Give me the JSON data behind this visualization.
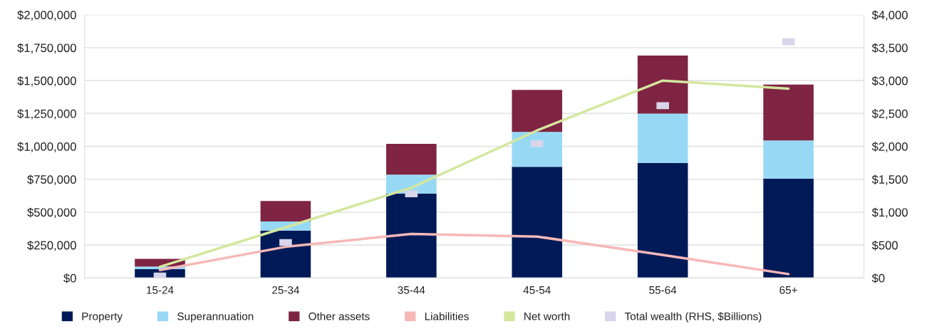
{
  "chart_data": {
    "type": "bar",
    "stacked": true,
    "categories": [
      "15-24",
      "25-34",
      "35-44",
      "45-54",
      "55-64",
      "65+"
    ],
    "series": [
      {
        "name": "Property",
        "color": "#001a57",
        "values": [
          67000,
          360000,
          640000,
          845000,
          875000,
          755000
        ]
      },
      {
        "name": "Superannuation",
        "color": "#97d9f5",
        "values": [
          21000,
          70000,
          145000,
          265000,
          375000,
          290000
        ]
      },
      {
        "name": "Other assets",
        "color": "#7f2443",
        "values": [
          57000,
          155000,
          235000,
          320000,
          440000,
          425000
        ]
      },
      {
        "name": "Liabilities",
        "type": "line",
        "color": "#f7b8b8",
        "values": [
          60000,
          237000,
          335000,
          315000,
          175000,
          30000
        ]
      },
      {
        "name": "Net worth",
        "type": "line",
        "color": "#d4e79e",
        "values": [
          85000,
          385000,
          686000,
          1121000,
          1500000,
          1439000
        ]
      },
      {
        "name": "Total wealth (RHS, $Billions)",
        "type": "scatter",
        "axis": "y2",
        "marker": "square",
        "color": "#d9d5ea",
        "values": [
          30,
          540,
          1280,
          2040,
          2620,
          3590
        ]
      }
    ],
    "ylim": [
      0,
      2000000
    ],
    "yticks": [
      {
        "value": 0,
        "label": "$0"
      },
      {
        "value": 250000,
        "label": "$250,000"
      },
      {
        "value": 500000,
        "label": "$500,000"
      },
      {
        "value": 750000,
        "label": "$750,000"
      },
      {
        "value": 1000000,
        "label": "$1,000,000"
      },
      {
        "value": 1250000,
        "label": "$1,250,000"
      },
      {
        "value": 1500000,
        "label": "$1,500,000"
      },
      {
        "value": 1750000,
        "label": "$1,750,000"
      },
      {
        "value": 2000000,
        "label": "$2,000,000"
      }
    ],
    "y2lim": [
      0,
      4000
    ],
    "y2ticks": [
      {
        "value": 0,
        "label": "$0"
      },
      {
        "value": 500,
        "label": "$500"
      },
      {
        "value": 1000,
        "label": "$1,000"
      },
      {
        "value": 1500,
        "label": "$1,500"
      },
      {
        "value": 2000,
        "label": "$2,000"
      },
      {
        "value": 2500,
        "label": "$2,500"
      },
      {
        "value": 3000,
        "label": "$3,000"
      },
      {
        "value": 3500,
        "label": "$3,500"
      },
      {
        "value": 4000,
        "label": "$4,000"
      }
    ],
    "grid": "y",
    "legend": "bottom",
    "line_style": "solid",
    "marker": "none"
  }
}
